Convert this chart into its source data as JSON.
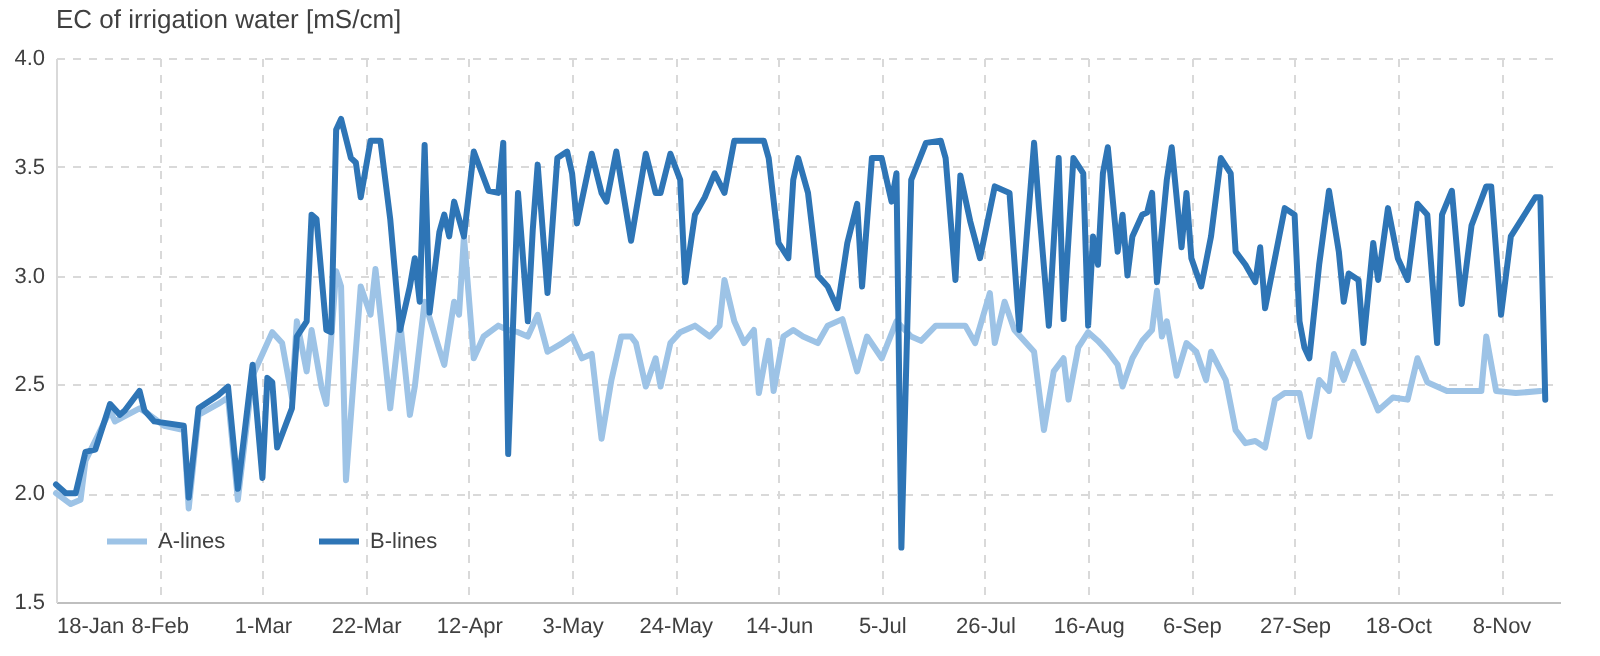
{
  "chart_data": {
    "type": "line",
    "title": "EC of irrigation water [mS/cm]",
    "xlim": [
      "--01-18",
      "--11-20"
    ],
    "xticks": [
      {
        "value": "--01-18",
        "label": "18-Jan"
      },
      {
        "value": "--02-08",
        "label": "8-Feb"
      },
      {
        "value": "--03-01",
        "label": "1-Mar"
      },
      {
        "value": "--03-22",
        "label": "22-Mar"
      },
      {
        "value": "--04-12",
        "label": "12-Apr"
      },
      {
        "value": "--05-03",
        "label": "3-May"
      },
      {
        "value": "--05-24",
        "label": "24-May"
      },
      {
        "value": "--06-14",
        "label": "14-Jun"
      },
      {
        "value": "--07-05",
        "label": "5-Jul"
      },
      {
        "value": "--07-26",
        "label": "26-Jul"
      },
      {
        "value": "--08-16",
        "label": "16-Aug"
      },
      {
        "value": "--09-06",
        "label": "6-Sep"
      },
      {
        "value": "--09-27",
        "label": "27-Sep"
      },
      {
        "value": "--10-18",
        "label": "18-Oct"
      },
      {
        "value": "--11-08",
        "label": "8-Nov"
      }
    ],
    "ylim": [
      1.5,
      4
    ],
    "yticks": [
      {
        "value": 1.5,
        "label": "1.5"
      },
      {
        "value": 2,
        "label": "2.0"
      },
      {
        "value": 2.5,
        "label": "2.5"
      },
      {
        "value": 3,
        "label": "3.0"
      },
      {
        "value": 3.5,
        "label": "3.5"
      },
      {
        "value": 4,
        "label": "4.0"
      }
    ],
    "grid": true,
    "legend": "bottom left",
    "series": [
      {
        "name": "A-lines",
        "color": "#9dc3e6",
        "x": [
          "--01-18",
          "--01-21",
          "--01-23",
          "--01-24",
          "--01-29",
          "--01-30",
          "--02-04",
          "--02-06",
          "--02-09",
          "--02-13",
          "--02-14",
          "--02-16",
          "--02-20",
          "--02-22",
          "--02-24",
          "--02-27",
          "--03-01",
          "--03-03",
          "--03-05",
          "--03-07",
          "--03-08",
          "--03-10",
          "--03-11",
          "--03-13",
          "--03-14",
          "--03-16",
          "--03-17",
          "--03-18",
          "--03-21",
          "--03-23",
          "--03-24",
          "--03-25",
          "--03-27",
          "--03-29",
          "--03-31",
          "--04-01",
          "--04-03",
          "--04-06",
          "--04-07",
          "--04-09",
          "--04-10",
          "--04-11",
          "--04-13",
          "--04-15",
          "--04-18",
          "--04-20",
          "--04-22",
          "--04-24",
          "--04-26",
          "--04-28",
          "--05-01",
          "--05-03",
          "--05-05",
          "--05-07",
          "--05-09",
          "--05-11",
          "--05-13",
          "--05-15",
          "--05-16",
          "--05-18",
          "--05-20",
          "--05-21",
          "--05-23",
          "--05-25",
          "--05-28",
          "--05-31",
          "--06-02",
          "--06-03",
          "--06-05",
          "--06-07",
          "--06-09",
          "--06-10",
          "--06-12",
          "--06-13",
          "--06-15",
          "--06-17",
          "--06-19",
          "--06-22",
          "--06-24",
          "--06-27",
          "--06-30",
          "--07-02",
          "--07-05",
          "--07-08",
          "--07-11",
          "--07-13",
          "--07-16",
          "--07-22",
          "--07-24",
          "--07-27",
          "--07-28",
          "--07-30",
          "--08-01",
          "--08-05",
          "--08-07",
          "--08-09",
          "--08-11",
          "--08-12",
          "--08-14",
          "--08-16",
          "--08-18",
          "--08-20",
          "--08-22",
          "--08-23",
          "--08-25",
          "--08-27",
          "--08-29",
          "--08-30",
          "--08-31",
          "--09-01",
          "--09-03",
          "--09-05",
          "--09-07",
          "--09-09",
          "--09-10",
          "--09-13",
          "--09-15",
          "--09-17",
          "--09-19",
          "--09-21",
          "--09-23",
          "--09-25",
          "--09-28",
          "--09-30",
          "--10-02",
          "--10-04",
          "--10-05",
          "--10-07",
          "--10-09",
          "--10-12",
          "--10-14",
          "--10-17",
          "--10-20",
          "--10-22",
          "--10-24",
          "--10-28",
          "--11-04",
          "--11-05",
          "--11-07",
          "--11-11",
          "--11-16"
        ],
        "values": [
          2.0,
          1.95,
          1.97,
          2.15,
          2.38,
          2.33,
          2.39,
          2.36,
          2.31,
          2.29,
          1.93,
          2.36,
          2.41,
          2.44,
          1.97,
          2.54,
          2.64,
          2.74,
          2.69,
          2.44,
          2.79,
          2.56,
          2.75,
          2.49,
          2.41,
          3.02,
          2.95,
          2.06,
          2.95,
          2.82,
          3.03,
          2.82,
          2.39,
          2.79,
          2.36,
          2.49,
          2.88,
          2.66,
          2.59,
          2.88,
          2.82,
          3.18,
          2.62,
          2.72,
          2.77,
          2.75,
          2.74,
          2.72,
          2.82,
          2.65,
          2.69,
          2.72,
          2.62,
          2.64,
          2.25,
          2.52,
          2.72,
          2.72,
          2.69,
          2.49,
          2.62,
          2.49,
          2.69,
          2.74,
          2.77,
          2.72,
          2.77,
          2.98,
          2.79,
          2.69,
          2.75,
          2.46,
          2.7,
          2.47,
          2.72,
          2.75,
          2.72,
          2.69,
          2.77,
          2.8,
          2.56,
          2.72,
          2.62,
          2.79,
          2.72,
          2.7,
          2.77,
          2.77,
          2.69,
          2.92,
          2.69,
          2.88,
          2.75,
          2.65,
          2.29,
          2.56,
          2.62,
          2.43,
          2.67,
          2.74,
          2.7,
          2.65,
          2.59,
          2.49,
          2.62,
          2.7,
          2.75,
          2.93,
          2.72,
          2.79,
          2.54,
          2.69,
          2.65,
          2.52,
          2.65,
          2.52,
          2.29,
          2.23,
          2.24,
          2.21,
          2.43,
          2.46,
          2.46,
          2.26,
          2.52,
          2.47,
          2.64,
          2.52,
          2.65,
          2.49,
          2.38,
          2.44,
          2.43,
          2.62,
          2.51,
          2.47,
          2.47,
          2.72,
          2.47,
          2.46,
          2.47
        ]
      },
      {
        "name": "B-lines",
        "color": "#2e75b6",
        "x": [
          "--01-18",
          "--01-20",
          "--01-22",
          "--01-24",
          "--01-26",
          "--01-29",
          "--01-31",
          "--02-01",
          "--02-04",
          "--02-05",
          "--02-07",
          "--02-13",
          "--02-14",
          "--02-16",
          "--02-20",
          "--02-22",
          "--02-24",
          "--02-27",
          "--03-01",
          "--03-02",
          "--03-03",
          "--03-04",
          "--03-07",
          "--03-08",
          "--03-10",
          "--03-11",
          "--03-12",
          "--03-14",
          "--03-15",
          "--03-16",
          "--03-17",
          "--03-19",
          "--03-20",
          "--03-21",
          "--03-23",
          "--03-25",
          "--03-27",
          "--03-29",
          "--03-31",
          "--04-01",
          "--04-02",
          "--04-03",
          "--04-04",
          "--04-06",
          "--04-07",
          "--04-08",
          "--04-09",
          "--04-11",
          "--04-13",
          "--04-16",
          "--04-18",
          "--04-19",
          "--04-20",
          "--04-22",
          "--04-24",
          "--04-25",
          "--04-26",
          "--04-28",
          "--04-30",
          "--05-02",
          "--05-03",
          "--05-04",
          "--05-07",
          "--05-09",
          "--05-10",
          "--05-12",
          "--05-15",
          "--05-18",
          "--05-20",
          "--05-21",
          "--05-23",
          "--05-25",
          "--05-26",
          "--05-28",
          "--05-30",
          "--06-01",
          "--06-03",
          "--06-05",
          "--06-07",
          "--06-11",
          "--06-12",
          "--06-14",
          "--06-16",
          "--06-17",
          "--06-18",
          "--06-20",
          "--06-22",
          "--06-24",
          "--06-26",
          "--06-28",
          "--06-30",
          "--07-01",
          "--07-03",
          "--07-05",
          "--07-07",
          "--07-08",
          "--07-09",
          "--07-11",
          "--07-14",
          "--07-17",
          "--07-18",
          "--07-20",
          "--07-21",
          "--07-23",
          "--07-25",
          "--07-28",
          "--07-31",
          "--08-02",
          "--08-05",
          "--08-06",
          "--08-08",
          "--08-10",
          "--08-11",
          "--08-13",
          "--08-15",
          "--08-16",
          "--08-17",
          "--08-18",
          "--08-19",
          "--08-20",
          "--08-22",
          "--08-23",
          "--08-24",
          "--08-25",
          "--08-27",
          "--08-28",
          "--08-29",
          "--08-30",
          "--09-01",
          "--09-02",
          "--09-04",
          "--09-05",
          "--09-06",
          "--09-08",
          "--09-10",
          "--09-12",
          "--09-14",
          "--09-15",
          "--09-17",
          "--09-19",
          "--09-20",
          "--09-21",
          "--09-23",
          "--09-25",
          "--09-27",
          "--09-28",
          "--09-29",
          "--09-30",
          "--10-02",
          "--10-04",
          "--10-06",
          "--10-07",
          "--10-08",
          "--10-10",
          "--10-11",
          "--10-13",
          "--10-14",
          "--10-16",
          "--10-18",
          "--10-20",
          "--10-22",
          "--10-24",
          "--10-26",
          "--10-27",
          "--10-29",
          "--10-31",
          "--11-02",
          "--11-05",
          "--11-06",
          "--11-08",
          "--11-10",
          "--11-15",
          "--11-16",
          "--11-17"
        ],
        "values": [
          2.04,
          2.0,
          2.0,
          2.19,
          2.2,
          2.41,
          2.36,
          2.38,
          2.47,
          2.38,
          2.33,
          2.31,
          1.98,
          2.39,
          2.45,
          2.49,
          2.02,
          2.59,
          2.07,
          2.53,
          2.51,
          2.21,
          2.39,
          2.72,
          2.79,
          3.28,
          3.26,
          2.75,
          2.74,
          3.67,
          3.72,
          3.54,
          3.52,
          3.36,
          3.62,
          3.62,
          3.26,
          2.75,
          2.95,
          3.08,
          2.88,
          3.6,
          2.83,
          3.2,
          3.28,
          3.18,
          3.34,
          3.18,
          3.57,
          3.39,
          3.38,
          3.61,
          2.18,
          3.38,
          2.79,
          3.21,
          3.51,
          2.92,
          3.54,
          3.57,
          3.47,
          3.24,
          3.56,
          3.38,
          3.34,
          3.57,
          3.16,
          3.56,
          3.38,
          3.38,
          3.56,
          3.44,
          2.97,
          3.28,
          3.36,
          3.47,
          3.38,
          3.62,
          3.62,
          3.62,
          3.54,
          3.15,
          3.08,
          3.44,
          3.54,
          3.38,
          3.0,
          2.95,
          2.85,
          3.15,
          3.33,
          2.95,
          3.54,
          3.54,
          3.34,
          3.47,
          1.75,
          3.44,
          3.61,
          3.62,
          3.54,
          2.98,
          3.46,
          3.25,
          3.08,
          3.41,
          3.38,
          2.75,
          3.61,
          3.31,
          2.77,
          3.54,
          2.8,
          3.54,
          3.47,
          2.77,
          3.18,
          3.05,
          3.47,
          3.59,
          3.11,
          3.28,
          3.0,
          3.18,
          3.28,
          3.29,
          3.38,
          2.97,
          3.44,
          3.59,
          3.13,
          3.38,
          3.08,
          2.95,
          3.18,
          3.54,
          3.47,
          3.11,
          3.05,
          2.97,
          3.13,
          2.85,
          3.08,
          3.31,
          3.28,
          2.79,
          2.67,
          2.62,
          3.05,
          3.39,
          3.11,
          2.88,
          3.01,
          2.98,
          2.69,
          3.15,
          2.98,
          3.31,
          3.08,
          2.98,
          3.33,
          3.28,
          2.69,
          3.28,
          3.39,
          2.87,
          3.23,
          3.41,
          3.41,
          2.82,
          3.18,
          3.36,
          3.36,
          2.43
        ]
      }
    ]
  }
}
